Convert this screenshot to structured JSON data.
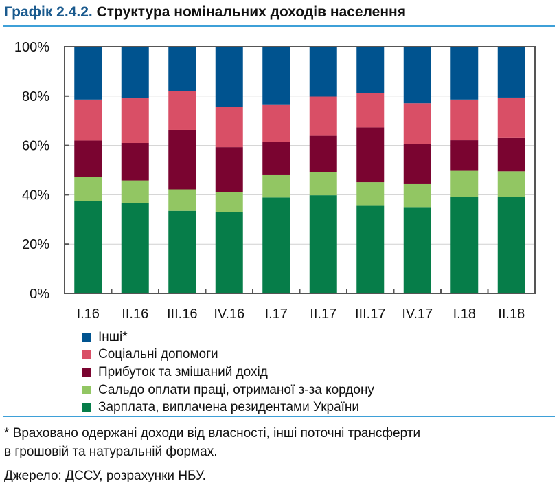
{
  "title_prefix": "Графік 2.4.2.",
  "title": "Структура номінальних доходів населення",
  "chart_data": {
    "type": "bar",
    "stacked": true,
    "categories": [
      "I.16",
      "II.16",
      "III.16",
      "IV.16",
      "I.17",
      "II.17",
      "III.17",
      "IV.17",
      "I.18",
      "II.18"
    ],
    "ylim": [
      0,
      100
    ],
    "yticks": [
      "0%",
      "20%",
      "40%",
      "60%",
      "80%",
      "100%"
    ],
    "grid": true,
    "legend_position": "bottom",
    "series": [
      {
        "name": "Зарплата, виплачена резидентами України",
        "color": "#067d49",
        "values": [
          37.6,
          36.5,
          33.5,
          33.0,
          38.9,
          39.8,
          35.5,
          35.0,
          39.2,
          39.2
        ]
      },
      {
        "name": "Сальдо оплати праці, отриманої з-за кордону",
        "color": "#92c663",
        "values": [
          9.5,
          9.3,
          8.7,
          8.2,
          9.3,
          9.5,
          9.6,
          9.3,
          10.5,
          10.3
        ]
      },
      {
        "name": "Прибуток та змішаний дохід",
        "color": "#7a0430",
        "values": [
          14.9,
          15.2,
          24.1,
          18.1,
          13.1,
          14.6,
          22.2,
          16.4,
          12.4,
          13.5
        ]
      },
      {
        "name": "Соціальні допомоги",
        "color": "#d94f66",
        "values": [
          16.6,
          18.1,
          15.7,
          16.4,
          15.1,
          15.9,
          14.0,
          16.4,
          16.5,
          16.4
        ]
      },
      {
        "name": "Інші*",
        "color": "#00538f",
        "values": [
          21.4,
          20.9,
          18.0,
          24.3,
          23.6,
          20.2,
          18.7,
          22.9,
          21.4,
          20.6
        ]
      }
    ]
  },
  "footnote_1": "* Враховано одержані доходи від власності, інші поточні трансферти",
  "footnote_2": "в грошовій та натуральній формах.",
  "source": "Джерело: ДССУ, розрахунки НБУ."
}
